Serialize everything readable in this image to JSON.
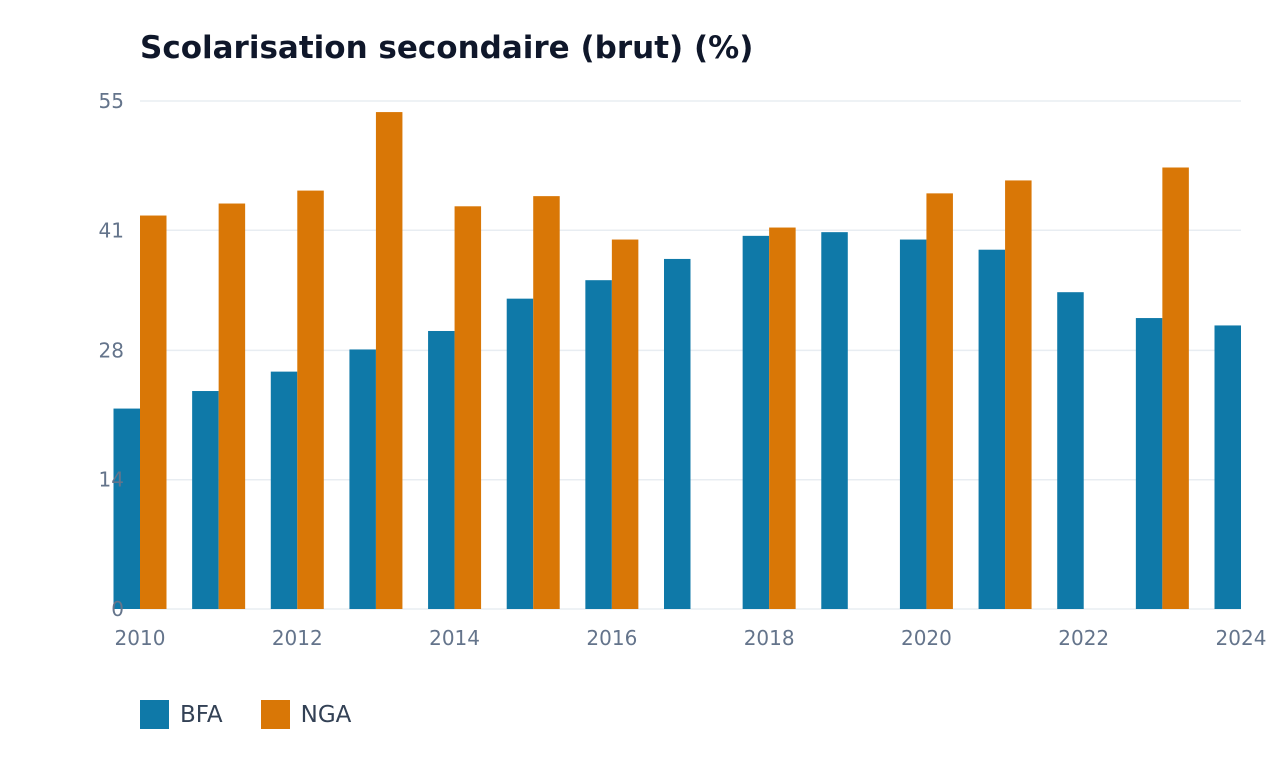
{
  "chart_data": {
    "type": "bar",
    "title": "Scolarisation secondaire (brut) (%)",
    "xlabel": "",
    "ylabel": "",
    "ylim": [
      0,
      55
    ],
    "y_ticks": [
      0,
      14,
      28,
      41,
      55
    ],
    "x_ticks": [
      2010,
      2012,
      2014,
      2016,
      2018,
      2020,
      2022,
      2024
    ],
    "categories": [
      2010,
      2011,
      2012,
      2013,
      2014,
      2015,
      2016,
      2017,
      2018,
      2019,
      2020,
      2021,
      2022,
      2023,
      2024
    ],
    "grid": true,
    "legend_position": "bottom-left",
    "series": [
      {
        "name": "BFA",
        "color": "#0f79a8",
        "values": [
          21.7,
          23.6,
          25.7,
          28.1,
          30.1,
          33.6,
          35.6,
          37.9,
          40.4,
          40.8,
          40.0,
          38.9,
          34.3,
          31.5,
          30.7
        ]
      },
      {
        "name": "NGA",
        "color": "#d97706",
        "values": [
          42.6,
          43.9,
          45.3,
          53.8,
          43.6,
          44.7,
          40.0,
          null,
          41.3,
          null,
          45.0,
          46.4,
          null,
          47.8,
          null
        ]
      }
    ]
  }
}
